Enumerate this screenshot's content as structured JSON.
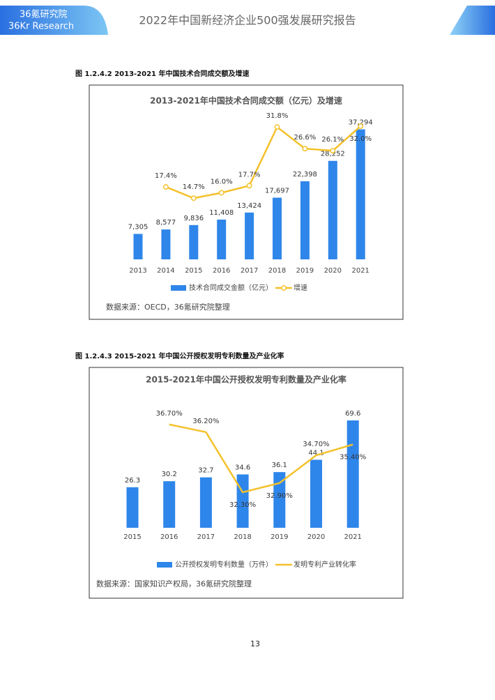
{
  "header": {
    "logo_cn": "36氪研究院",
    "logo_en": "36Kr Research",
    "title": "2022年中国新经济企业500强发展研究报告"
  },
  "captions": [
    "图 1.2.4.2 2013-2021 年中国技术合同成交额及增速",
    "图 1.2.4.3 2015-2021 年中国公开授权发明专利数量及产业化率"
  ],
  "chart_data": [
    {
      "type": "bar",
      "title": "2013-2021年中国技术合同成交额（亿元）及增速",
      "categories": [
        "2013",
        "2014",
        "2015",
        "2016",
        "2017",
        "2018",
        "2019",
        "2020",
        "2021"
      ],
      "series": [
        {
          "name": "技术合同成交金额（亿元）",
          "type": "bar",
          "color": "#2f86ea",
          "values": [
            7305,
            8577,
            9836,
            11408,
            13424,
            17697,
            22398,
            28252,
            37294
          ],
          "value_labels": [
            "7,305",
            "8,577",
            "9,836",
            "11,408",
            "13,424",
            "17,697",
            "22,398",
            "28,252",
            "37,294"
          ]
        },
        {
          "name": "增速",
          "type": "line",
          "axis": "y2",
          "color": "#f4c12b",
          "values": [
            null,
            17.4,
            14.7,
            16.0,
            17.7,
            31.8,
            26.6,
            26.1,
            32.0
          ],
          "value_labels": [
            null,
            "17.4%",
            "14.7%",
            "16.0%",
            "17.7%",
            "31.8%",
            "26.6%",
            "26.1%",
            "32.0%"
          ]
        }
      ],
      "ylim": [
        0,
        40000
      ],
      "y2lim": [
        0,
        33.5
      ],
      "source": "数据来源：OECD，36氪研究院整理"
    },
    {
      "type": "bar",
      "title": "2015-2021年中国公开授权发明专利数量及产业化率",
      "categories": [
        "2015",
        "2016",
        "2017",
        "2018",
        "2019",
        "2020",
        "2021"
      ],
      "series": [
        {
          "name": "公开授权发明专利数量（万件）",
          "type": "bar",
          "color": "#2f86ea",
          "values": [
            26.3,
            30.2,
            32.7,
            34.6,
            36.1,
            44.1,
            69.6
          ]
        },
        {
          "name": "发明专利产业转化率",
          "type": "line",
          "axis": "y2",
          "color": "#f4c12b",
          "values": [
            null,
            36.7,
            36.2,
            32.3,
            32.9,
            34.7,
            35.4
          ],
          "value_labels": [
            null,
            "36.70%",
            "36.20%",
            "32.30%",
            "32.90%",
            "34.70%",
            "35.40%"
          ]
        }
      ],
      "ylim": [
        0,
        80
      ],
      "y2lim": [
        30,
        38
      ],
      "source": "数据来源：国家知识产权局，36氪研究院整理"
    }
  ],
  "page_number": "13"
}
